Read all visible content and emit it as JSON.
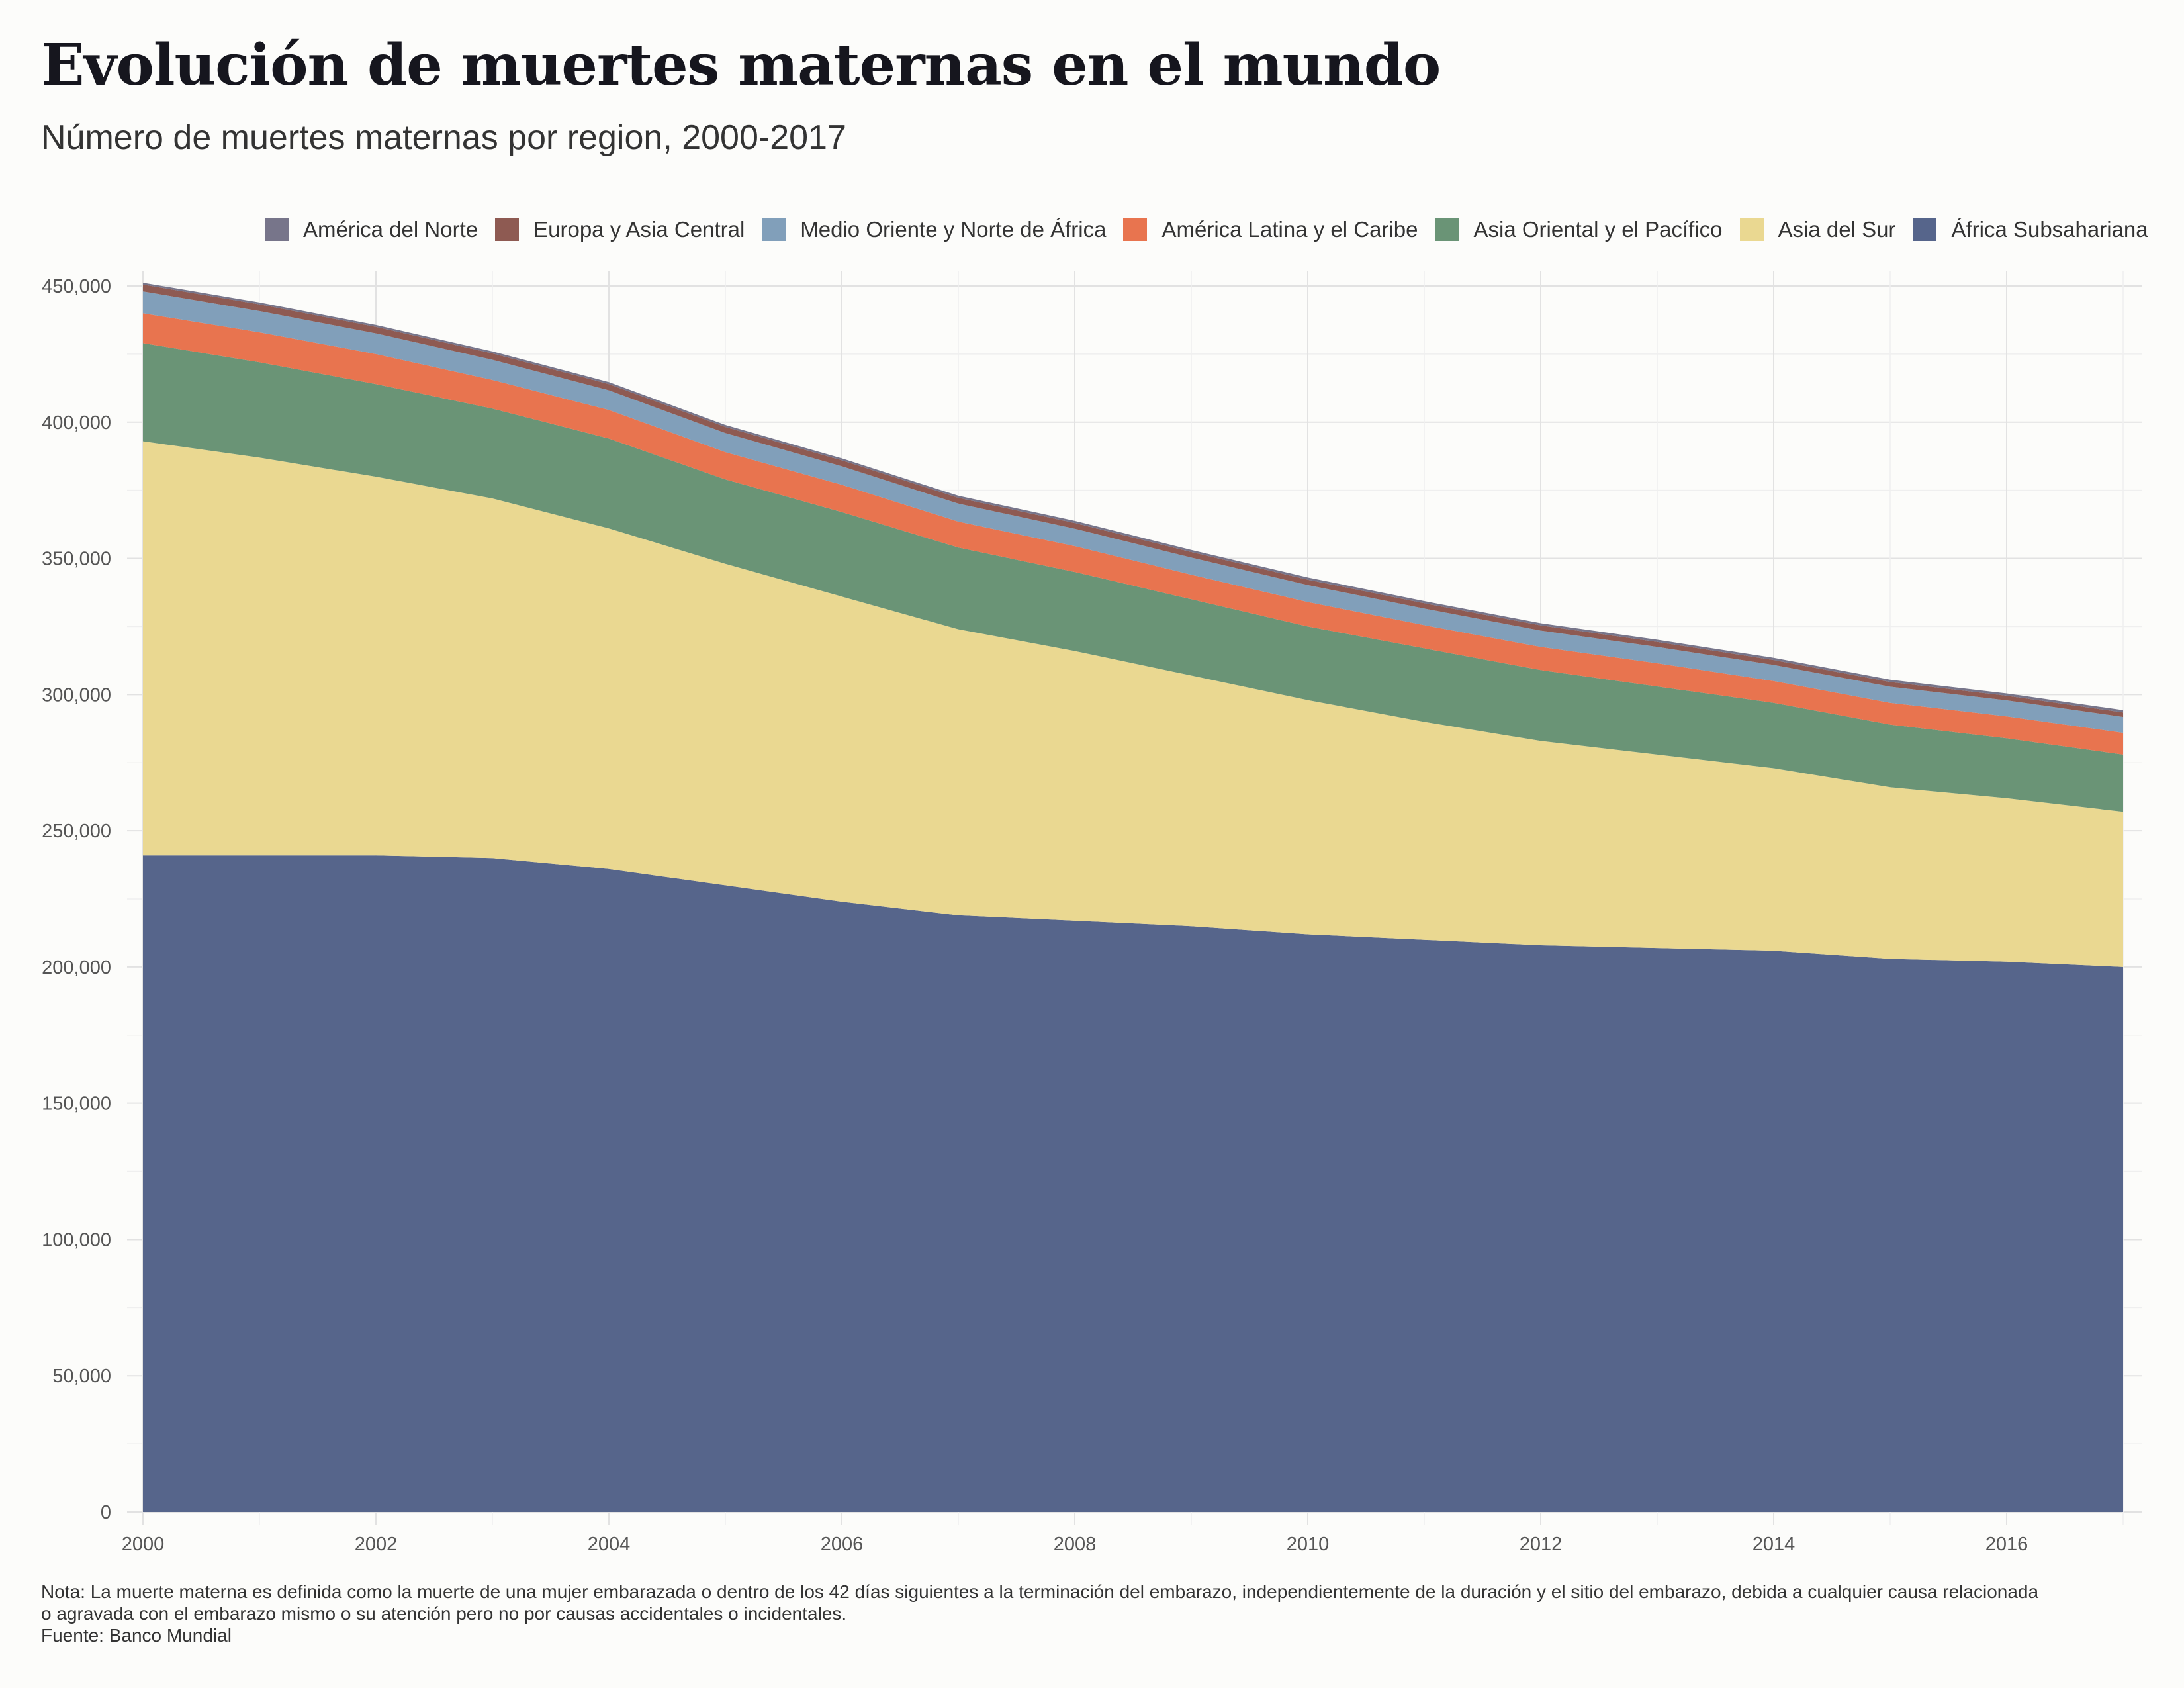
{
  "title": "Evolución de muertes maternas en el mundo",
  "subtitle": "Número de muertes maternas por region, 2000-2017",
  "note_line1": "Nota: La muerte materna es definida como la muerte de una mujer embarazada o dentro de los 42 días siguientes a la terminación del embarazo, independientemente de la duración y el sitio del embarazo, debida a cualquier causa relacionada",
  "note_line2": "o agravada con el embarazo mismo o su atención pero no por causas accidentales o incidentales.",
  "source": "Fuente: Banco Mundial",
  "chart_data": {
    "type": "area",
    "stacked": true,
    "x": [
      2000,
      2001,
      2002,
      2003,
      2004,
      2005,
      2006,
      2007,
      2008,
      2009,
      2010,
      2011,
      2012,
      2013,
      2014,
      2015,
      2016,
      2017
    ],
    "xlim": [
      2000,
      2017
    ],
    "ylim": [
      0,
      450000
    ],
    "x_ticks": [
      "2000",
      "2002",
      "2004",
      "2006",
      "2008",
      "2010",
      "2012",
      "2014",
      "2016"
    ],
    "y_ticks": [
      "0",
      "50,000",
      "100,000",
      "150,000",
      "200,000",
      "250,000",
      "300,000",
      "350,000",
      "400,000",
      "450,000"
    ],
    "grid": true,
    "legend_position": "top",
    "series": [
      {
        "name": "África Subsahariana",
        "color": "#56658b",
        "values": [
          241000,
          241000,
          241000,
          240000,
          236000,
          230000,
          224000,
          219000,
          217000,
          215000,
          212000,
          210000,
          208000,
          207000,
          206000,
          203000,
          202000,
          200000
        ]
      },
      {
        "name": "Asia del Sur",
        "color": "#ead891",
        "values": [
          152000,
          146000,
          139000,
          132000,
          125000,
          118000,
          112000,
          105000,
          99000,
          92000,
          86000,
          80000,
          75000,
          71000,
          67000,
          63000,
          60000,
          57000
        ]
      },
      {
        "name": "Asia Oriental y el Pacífico",
        "color": "#6a9476",
        "values": [
          36000,
          35000,
          34000,
          33000,
          33000,
          31000,
          31000,
          30000,
          29000,
          28000,
          27000,
          27000,
          26000,
          25000,
          24000,
          23000,
          22000,
          21000
        ]
      },
      {
        "name": "América Latina y el Caribe",
        "color": "#e8744f",
        "values": [
          11000,
          11000,
          11000,
          10500,
          10500,
          10000,
          10000,
          9500,
          9500,
          9000,
          9000,
          8500,
          8500,
          8500,
          8000,
          8000,
          8000,
          8000
        ]
      },
      {
        "name": "Medio Oriente y Norte de África",
        "color": "#819fba",
        "values": [
          8000,
          7800,
          7600,
          7400,
          7200,
          7000,
          6800,
          6600,
          6400,
          6300,
          6200,
          6100,
          6000,
          6000,
          5900,
          5900,
          5900,
          5800
        ]
      },
      {
        "name": "Europa y Asia Central",
        "color": "#8e5a52",
        "values": [
          2500,
          2450,
          2400,
          2350,
          2300,
          2250,
          2200,
          2150,
          2100,
          2050,
          2000,
          1950,
          1900,
          1850,
          1800,
          1750,
          1700,
          1650
        ]
      },
      {
        "name": "América del Norte",
        "color": "#77758a",
        "values": [
          700,
          700,
          700,
          710,
          720,
          730,
          740,
          750,
          760,
          770,
          780,
          790,
          800,
          810,
          820,
          830,
          840,
          850
        ]
      }
    ]
  }
}
